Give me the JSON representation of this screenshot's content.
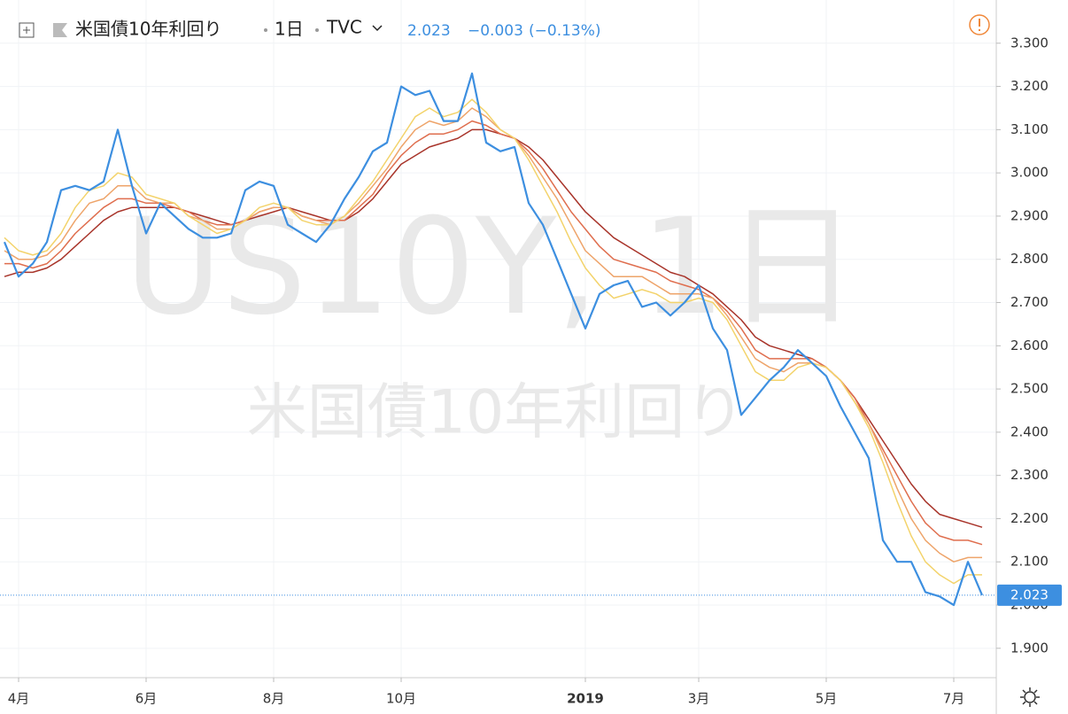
{
  "chart_data": {
    "type": "line",
    "title": "米国債10年利回り",
    "interval": "1日",
    "source": "TVC",
    "change": "−0.003",
    "change_pct": "(−0.13%)",
    "watermark_symbol": "US10Y, 1日",
    "categories": [
      null,
      "4月",
      null,
      null,
      null,
      null,
      null,
      null,
      null,
      null,
      "6月",
      null,
      null,
      null,
      null,
      null,
      null,
      null,
      null,
      "8月",
      null,
      null,
      null,
      null,
      null,
      null,
      null,
      null,
      "10月",
      null,
      null,
      null,
      null,
      null,
      null,
      null,
      null,
      null,
      null,
      null,
      null,
      "2019",
      null,
      null,
      null,
      null,
      null,
      null,
      null,
      "3月",
      null,
      null,
      null,
      null,
      null,
      null,
      null,
      null,
      "5月",
      null,
      null,
      null,
      null,
      null,
      null,
      null,
      null,
      "7月",
      null,
      null
    ],
    "series": [
      {
        "color": "#3d8fe0",
        "values": [
          2.84,
          2.76,
          2.79,
          2.84,
          2.96,
          2.97,
          2.96,
          2.98,
          3.1,
          2.97,
          2.86,
          2.93,
          2.9,
          2.87,
          2.85,
          2.85,
          2.86,
          2.96,
          2.98,
          2.97,
          2.88,
          2.86,
          2.84,
          2.88,
          2.94,
          2.99,
          3.05,
          3.07,
          3.2,
          3.18,
          3.19,
          3.12,
          3.12,
          3.23,
          3.07,
          3.05,
          3.06,
          2.93,
          2.88,
          2.8,
          2.72,
          2.64,
          2.72,
          2.74,
          2.75,
          2.69,
          2.7,
          2.67,
          2.7,
          2.74,
          2.64,
          2.59,
          2.44,
          2.48,
          2.52,
          2.55,
          2.59,
          2.56,
          2.53,
          2.46,
          2.4,
          2.34,
          2.15,
          2.1,
          2.1,
          2.03,
          2.02,
          2.0,
          2.1,
          2.023
        ]
      },
      {
        "color": "#f3d36b",
        "values": [
          2.85,
          2.82,
          2.81,
          2.82,
          2.86,
          2.92,
          2.96,
          2.97,
          3.0,
          2.99,
          2.95,
          2.94,
          2.93,
          2.9,
          2.88,
          2.86,
          2.87,
          2.89,
          2.92,
          2.93,
          2.92,
          2.89,
          2.88,
          2.88,
          2.9,
          2.94,
          2.98,
          3.03,
          3.08,
          3.13,
          3.15,
          3.13,
          3.14,
          3.17,
          3.14,
          3.1,
          3.08,
          3.03,
          2.97,
          2.91,
          2.84,
          2.78,
          2.74,
          2.71,
          2.72,
          2.73,
          2.72,
          2.7,
          2.7,
          2.71,
          2.7,
          2.66,
          2.6,
          2.54,
          2.52,
          2.52,
          2.55,
          2.56,
          2.55,
          2.52,
          2.47,
          2.41,
          2.33,
          2.24,
          2.16,
          2.1,
          2.07,
          2.05,
          2.07,
          2.07
        ]
      },
      {
        "color": "#eea46a",
        "values": [
          2.82,
          2.8,
          2.8,
          2.81,
          2.84,
          2.89,
          2.93,
          2.94,
          2.97,
          2.97,
          2.94,
          2.93,
          2.93,
          2.9,
          2.89,
          2.87,
          2.87,
          2.89,
          2.91,
          2.92,
          2.92,
          2.9,
          2.89,
          2.88,
          2.9,
          2.93,
          2.97,
          3.01,
          3.06,
          3.1,
          3.12,
          3.11,
          3.12,
          3.15,
          3.13,
          3.1,
          3.08,
          3.04,
          2.99,
          2.94,
          2.88,
          2.82,
          2.79,
          2.76,
          2.76,
          2.76,
          2.74,
          2.72,
          2.72,
          2.72,
          2.71,
          2.67,
          2.62,
          2.57,
          2.55,
          2.54,
          2.56,
          2.56,
          2.55,
          2.52,
          2.47,
          2.42,
          2.35,
          2.27,
          2.2,
          2.15,
          2.12,
          2.1,
          2.11,
          2.11
        ]
      },
      {
        "color": "#df6e4e",
        "values": [
          2.79,
          2.79,
          2.78,
          2.79,
          2.82,
          2.86,
          2.89,
          2.92,
          2.94,
          2.94,
          2.93,
          2.93,
          2.92,
          2.91,
          2.89,
          2.88,
          2.88,
          2.89,
          2.91,
          2.92,
          2.92,
          2.9,
          2.89,
          2.89,
          2.89,
          2.92,
          2.95,
          3.0,
          3.04,
          3.07,
          3.09,
          3.09,
          3.1,
          3.12,
          3.11,
          3.09,
          3.08,
          3.05,
          3.01,
          2.96,
          2.91,
          2.87,
          2.83,
          2.8,
          2.79,
          2.78,
          2.77,
          2.75,
          2.74,
          2.73,
          2.71,
          2.68,
          2.64,
          2.59,
          2.57,
          2.57,
          2.57,
          2.57,
          2.55,
          2.52,
          2.48,
          2.42,
          2.36,
          2.3,
          2.24,
          2.19,
          2.16,
          2.15,
          2.15,
          2.14
        ]
      },
      {
        "color": "#a8342a",
        "values": [
          2.76,
          2.77,
          2.77,
          2.78,
          2.8,
          2.83,
          2.86,
          2.89,
          2.91,
          2.92,
          2.92,
          2.92,
          2.92,
          2.91,
          2.9,
          2.89,
          2.88,
          2.89,
          2.9,
          2.91,
          2.92,
          2.91,
          2.9,
          2.89,
          2.89,
          2.91,
          2.94,
          2.98,
          3.02,
          3.04,
          3.06,
          3.07,
          3.08,
          3.1,
          3.1,
          3.09,
          3.08,
          3.06,
          3.03,
          2.99,
          2.95,
          2.91,
          2.88,
          2.85,
          2.83,
          2.81,
          2.79,
          2.77,
          2.76,
          2.74,
          2.72,
          2.69,
          2.66,
          2.62,
          2.6,
          2.59,
          2.58,
          2.57,
          2.55,
          2.52,
          2.48,
          2.43,
          2.38,
          2.33,
          2.28,
          2.24,
          2.21,
          2.2,
          2.19,
          2.18
        ]
      }
    ],
    "ylim": [
      1.832,
      3.4
    ],
    "yticks": [
      {
        "value": 1.9,
        "label": "1.900"
      },
      {
        "value": 2.0,
        "label": "2.000"
      },
      {
        "value": 2.1,
        "label": "2.100"
      },
      {
        "value": 2.2,
        "label": "2.200"
      },
      {
        "value": 2.3,
        "label": "2.300"
      },
      {
        "value": 2.4,
        "label": "2.400"
      },
      {
        "value": 2.5,
        "label": "2.500"
      },
      {
        "value": 2.6,
        "label": "2.600"
      },
      {
        "value": 2.7,
        "label": "2.700"
      },
      {
        "value": 2.8,
        "label": "2.800"
      },
      {
        "value": 2.9,
        "label": "2.900"
      },
      {
        "value": 3.0,
        "label": "3.000"
      },
      {
        "value": 3.1,
        "label": "3.100"
      },
      {
        "value": 3.2,
        "label": "3.200"
      },
      {
        "value": 3.3,
        "label": "3.300"
      }
    ],
    "grid": true
  }
}
